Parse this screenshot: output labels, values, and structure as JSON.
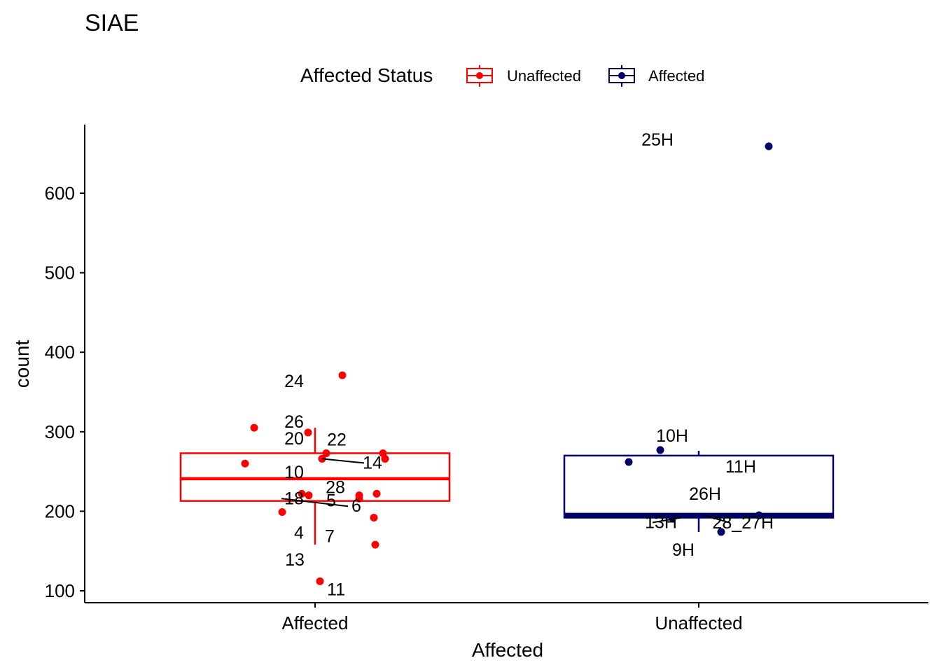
{
  "chart_data": {
    "type": "box",
    "title": "SIAE",
    "xlabel": "Affected",
    "ylabel": "count",
    "categories": [
      "Affected",
      "Unaffected"
    ],
    "y_ticks": [
      100,
      200,
      300,
      400,
      500,
      600
    ],
    "ylim": [
      85,
      686
    ],
    "legend": {
      "title": "Affected Status",
      "position": "top",
      "entries": [
        {
          "label": "Unaffected",
          "color": "#ff0000"
        },
        {
          "label": "Affected",
          "color": "#000066"
        }
      ]
    },
    "series": [
      {
        "category": "Affected",
        "color": "#ff0000",
        "box": {
          "whisker_low": 158,
          "q1": 213,
          "median": 241,
          "q3": 273,
          "whisker_high": 305
        },
        "points": [
          {
            "label": "24",
            "y": 371
          },
          {
            "label": "26",
            "y": 305
          },
          {
            "label": "20",
            "y": 299
          },
          {
            "label": "22",
            "y": 273
          },
          {
            "label": "",
            "y": 273
          },
          {
            "label": "",
            "y": 266
          },
          {
            "label": "14",
            "y": 266
          },
          {
            "label": "10",
            "y": 260
          },
          {
            "label": "28",
            "y": 222
          },
          {
            "label": "18",
            "y": 222
          },
          {
            "label": "",
            "y": 220
          },
          {
            "label": "5",
            "y": 220
          },
          {
            "label": "6",
            "y": 216
          },
          {
            "label": "4",
            "y": 199
          },
          {
            "label": "7",
            "y": 192
          },
          {
            "label": "13",
            "y": 158
          },
          {
            "label": "11",
            "y": 112
          }
        ]
      },
      {
        "category": "Unaffected",
        "color": "#000066",
        "box": {
          "whisker_low": 174,
          "q1": 192,
          "median": 195,
          "q3": 270,
          "whisker_high": 276
        },
        "points": [
          {
            "label": "25H",
            "y": 659
          },
          {
            "label": "10H",
            "y": 277
          },
          {
            "label": "11H",
            "y": 262
          },
          {
            "label": "26H",
            "y": 195
          },
          {
            "label": "28_27H",
            "y": 195
          },
          {
            "label": "13H",
            "y": 192
          },
          {
            "label": "9H",
            "y": 174
          }
        ]
      }
    ]
  }
}
